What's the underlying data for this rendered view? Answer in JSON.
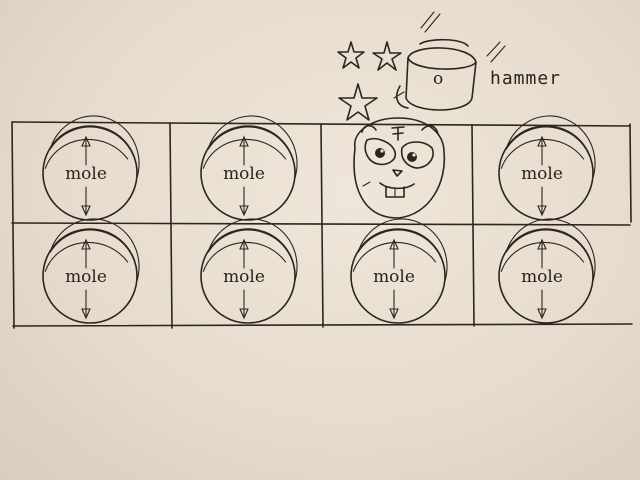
{
  "game": {
    "board": {
      "rows": 2,
      "columns": 4,
      "popped_hole": {
        "row": 0,
        "column": 2
      }
    },
    "hole_label": "mole",
    "hammer_label": "hammer",
    "hammer_head_mark": "o",
    "hit_stars": 3,
    "ink_color": "#2c2620",
    "paper_color": "#e9dfd2"
  }
}
